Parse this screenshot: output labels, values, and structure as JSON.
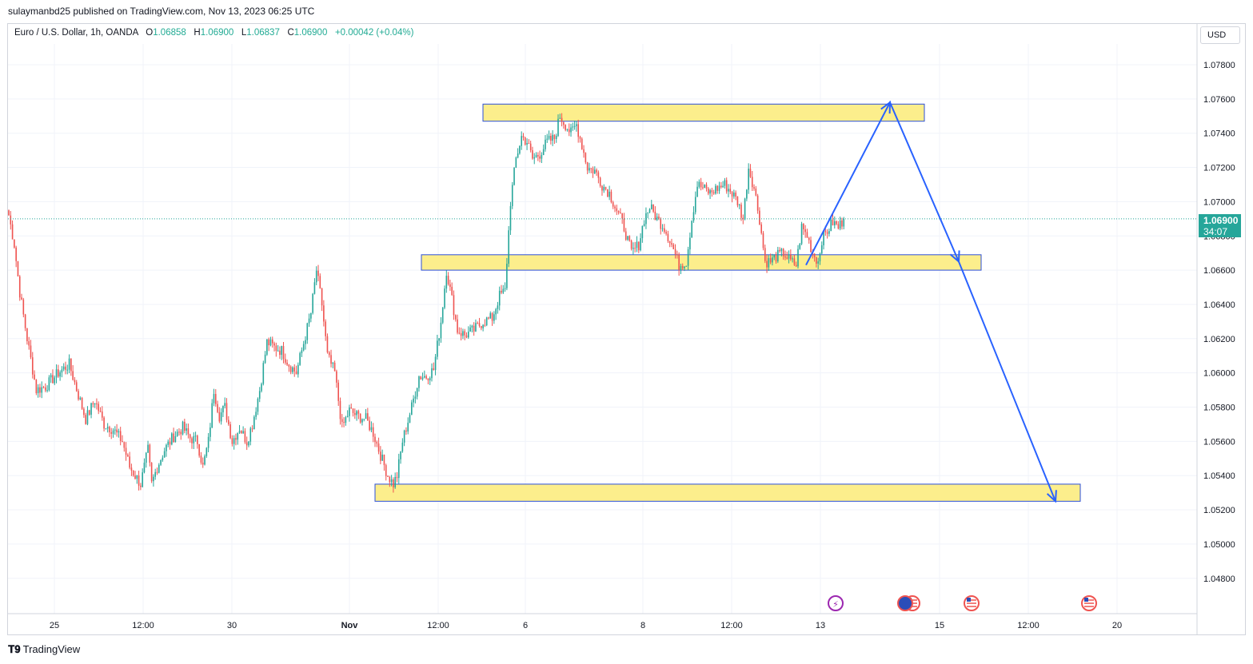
{
  "publisher_line": "sulaymanbd25 published on TradingView.com, Nov 13, 2023 06:25 UTC",
  "legend": {
    "symbol": "Euro / U.S. Dollar, 1h, OANDA",
    "open_label": "O",
    "open": "1.06858",
    "high_label": "H",
    "high": "1.06900",
    "low_label": "L",
    "low": "1.06837",
    "close_label": "C",
    "close": "1.06900",
    "change": "+0.00042 (+0.04%)"
  },
  "currency": "USD",
  "last_price": {
    "price": "1.06900",
    "countdown": "34:07"
  },
  "footer": {
    "brand": "TradingView"
  },
  "colors": {
    "up": "#26a69a",
    "down": "#ef5350",
    "zone_fill": "#fcee8c",
    "zone_border": "#2b4fd9",
    "arrow": "#2962ff"
  },
  "chart_data": {
    "type": "candlestick",
    "symbol": "EURUSD",
    "timeframe": "1h",
    "y_ticks": [
      "1.07800",
      "1.07600",
      "1.07400",
      "1.07200",
      "1.07000",
      "1.06800",
      "1.06600",
      "1.06400",
      "1.06200",
      "1.06000",
      "1.05800",
      "1.05600",
      "1.05400",
      "1.05200",
      "1.05000",
      "1.04800"
    ],
    "x_ticks": [
      "25",
      "12:00",
      "30",
      "Nov",
      "12:00",
      "6",
      "8",
      "12:00",
      "13",
      "15",
      "12:00",
      "20"
    ],
    "zones": [
      {
        "name": "resistance-zone",
        "from": 1.0747,
        "to": 1.0757
      },
      {
        "name": "support-zone",
        "from": 1.066,
        "to": 1.0669
      },
      {
        "name": "target-zone",
        "from": 1.0525,
        "to": 1.0535
      }
    ],
    "projection_path": [
      1.0663,
      1.0758,
      1.0665,
      1.0525
    ],
    "anchors": [
      {
        "b": 0,
        "p": 1.0692
      },
      {
        "b": 3,
        "p": 1.0675
      },
      {
        "b": 6,
        "p": 1.0647
      },
      {
        "b": 10,
        "p": 1.062
      },
      {
        "b": 15,
        "p": 1.059
      },
      {
        "b": 20,
        "p": 1.0592
      },
      {
        "b": 27,
        "p": 1.06
      },
      {
        "b": 33,
        "p": 1.0605
      },
      {
        "b": 38,
        "p": 1.0587
      },
      {
        "b": 42,
        "p": 1.0573
      },
      {
        "b": 47,
        "p": 1.0584
      },
      {
        "b": 52,
        "p": 1.057
      },
      {
        "b": 57,
        "p": 1.0567
      },
      {
        "b": 62,
        "p": 1.056
      },
      {
        "b": 66,
        "p": 1.0545
      },
      {
        "b": 72,
        "p": 1.0535
      },
      {
        "b": 76,
        "p": 1.0555
      },
      {
        "b": 78,
        "p": 1.0535
      },
      {
        "b": 81,
        "p": 1.0545
      },
      {
        "b": 85,
        "p": 1.0555
      },
      {
        "b": 90,
        "p": 1.0563
      },
      {
        "b": 95,
        "p": 1.0568
      },
      {
        "b": 99,
        "p": 1.0562
      },
      {
        "b": 103,
        "p": 1.056
      },
      {
        "b": 106,
        "p": 1.0545
      },
      {
        "b": 109,
        "p": 1.056
      },
      {
        "b": 112,
        "p": 1.059
      },
      {
        "b": 115,
        "p": 1.0575
      },
      {
        "b": 118,
        "p": 1.058
      },
      {
        "b": 122,
        "p": 1.056
      },
      {
        "b": 126,
        "p": 1.0568
      },
      {
        "b": 130,
        "p": 1.056
      },
      {
        "b": 133,
        "p": 1.057
      },
      {
        "b": 137,
        "p": 1.059
      },
      {
        "b": 141,
        "p": 1.0618
      },
      {
        "b": 145,
        "p": 1.0615
      },
      {
        "b": 149,
        "p": 1.0613
      },
      {
        "b": 153,
        "p": 1.0605
      },
      {
        "b": 157,
        "p": 1.06
      },
      {
        "b": 160,
        "p": 1.0613
      },
      {
        "b": 165,
        "p": 1.0635
      },
      {
        "b": 168,
        "p": 1.066
      },
      {
        "b": 171,
        "p": 1.064
      },
      {
        "b": 174,
        "p": 1.061
      },
      {
        "b": 178,
        "p": 1.06
      },
      {
        "b": 182,
        "p": 1.0568
      },
      {
        "b": 186,
        "p": 1.0578
      },
      {
        "b": 190,
        "p": 1.0575
      },
      {
        "b": 195,
        "p": 1.0573
      },
      {
        "b": 199,
        "p": 1.0565
      },
      {
        "b": 203,
        "p": 1.0552
      },
      {
        "b": 207,
        "p": 1.054
      },
      {
        "b": 210,
        "p": 1.0535
      },
      {
        "b": 212,
        "p": 1.054
      },
      {
        "b": 215,
        "p": 1.056
      },
      {
        "b": 217,
        "p": 1.0568
      },
      {
        "b": 220,
        "p": 1.058
      },
      {
        "b": 224,
        "p": 1.0598
      },
      {
        "b": 228,
        "p": 1.0598
      },
      {
        "b": 232,
        "p": 1.0602
      },
      {
        "b": 236,
        "p": 1.063
      },
      {
        "b": 239,
        "p": 1.066
      },
      {
        "b": 242,
        "p": 1.0643
      },
      {
        "b": 245,
        "p": 1.0625
      },
      {
        "b": 249,
        "p": 1.0622
      },
      {
        "b": 254,
        "p": 1.0625
      },
      {
        "b": 259,
        "p": 1.063
      },
      {
        "b": 264,
        "p": 1.0632
      },
      {
        "b": 268,
        "p": 1.0645
      },
      {
        "b": 271,
        "p": 1.0648
      },
      {
        "b": 274,
        "p": 1.07
      },
      {
        "b": 277,
        "p": 1.0725
      },
      {
        "b": 280,
        "p": 1.0738
      },
      {
        "b": 283,
        "p": 1.0735
      },
      {
        "b": 286,
        "p": 1.0725
      },
      {
        "b": 290,
        "p": 1.0728
      },
      {
        "b": 294,
        "p": 1.0735
      },
      {
        "b": 298,
        "p": 1.0737
      },
      {
        "b": 301,
        "p": 1.075
      },
      {
        "b": 304,
        "p": 1.0745
      },
      {
        "b": 307,
        "p": 1.074
      },
      {
        "b": 310,
        "p": 1.0745
      },
      {
        "b": 313,
        "p": 1.0733
      },
      {
        "b": 316,
        "p": 1.072
      },
      {
        "b": 320,
        "p": 1.0718
      },
      {
        "b": 324,
        "p": 1.071
      },
      {
        "b": 328,
        "p": 1.0705
      },
      {
        "b": 332,
        "p": 1.0695
      },
      {
        "b": 336,
        "p": 1.0685
      },
      {
        "b": 340,
        "p": 1.067
      },
      {
        "b": 344,
        "p": 1.0675
      },
      {
        "b": 347,
        "p": 1.069
      },
      {
        "b": 350,
        "p": 1.0697
      },
      {
        "b": 354,
        "p": 1.069
      },
      {
        "b": 358,
        "p": 1.0685
      },
      {
        "b": 362,
        "p": 1.0675
      },
      {
        "b": 366,
        "p": 1.0663
      },
      {
        "b": 370,
        "p": 1.0665
      },
      {
        "b": 373,
        "p": 1.069
      },
      {
        "b": 376,
        "p": 1.071
      },
      {
        "b": 379,
        "p": 1.0708
      },
      {
        "b": 383,
        "p": 1.0705
      },
      {
        "b": 387,
        "p": 1.0708
      },
      {
        "b": 391,
        "p": 1.071
      },
      {
        "b": 395,
        "p": 1.0705
      },
      {
        "b": 398,
        "p": 1.07
      },
      {
        "b": 401,
        "p": 1.069
      },
      {
        "b": 404,
        "p": 1.072
      },
      {
        "b": 407,
        "p": 1.0708
      },
      {
        "b": 410,
        "p": 1.069
      },
      {
        "b": 413,
        "p": 1.0665
      },
      {
        "b": 416,
        "p": 1.0665
      },
      {
        "b": 419,
        "p": 1.0668
      },
      {
        "b": 423,
        "p": 1.067
      },
      {
        "b": 427,
        "p": 1.0665
      },
      {
        "b": 430,
        "p": 1.0663
      },
      {
        "b": 433,
        "p": 1.0685
      },
      {
        "b": 436,
        "p": 1.068
      },
      {
        "b": 439,
        "p": 1.067
      },
      {
        "b": 442,
        "p": 1.0665
      },
      {
        "b": 444,
        "p": 1.0678
      },
      {
        "b": 447,
        "p": 1.0683
      },
      {
        "b": 450,
        "p": 1.0688
      },
      {
        "b": 453,
        "p": 1.0685
      },
      {
        "b": 456,
        "p": 1.069
      }
    ]
  }
}
